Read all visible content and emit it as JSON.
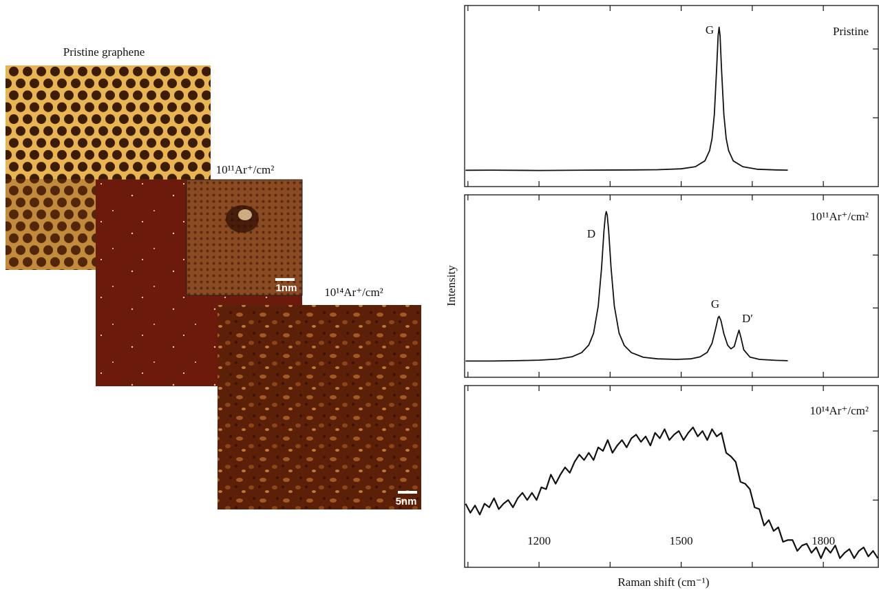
{
  "images": [
    {
      "label": "Pristine graphene"
    },
    {
      "label": "10¹¹Ar⁺/cm²",
      "scale_bar": "1nm"
    },
    {
      "label": "10¹⁴Ar⁺/cm²",
      "scale_bar": "5nm"
    }
  ],
  "chart_data": [
    {
      "type": "line",
      "label": "Pristine",
      "annotations": [
        "G"
      ],
      "color": "#111111",
      "xlim": [
        1043,
        1916
      ],
      "ylim": [
        0,
        100
      ],
      "yticks": [
        38,
        76
      ],
      "x": [
        1045,
        1100,
        1200,
        1300,
        1400,
        1450,
        1500,
        1530,
        1550,
        1560,
        1565,
        1570,
        1575,
        1578,
        1580,
        1582,
        1585,
        1590,
        1595,
        1600,
        1610,
        1630,
        1660,
        1700,
        1725
      ],
      "values": [
        9.0,
        9.1,
        8.9,
        9.1,
        9.2,
        9.3,
        9.8,
        11.0,
        14.2,
        19.9,
        26.5,
        39.9,
        65.8,
        83.4,
        88.0,
        83.4,
        65.8,
        39.9,
        26.5,
        19.9,
        14.2,
        11.0,
        9.6,
        9.2,
        9.1
      ]
    },
    {
      "type": "line",
      "label": "10¹¹Ar⁺/cm²",
      "ylabel": "Intensity",
      "annotations": [
        "D",
        "G",
        "D′"
      ],
      "color": "#111111",
      "xlim": [
        1043,
        1916
      ],
      "ylim": [
        0,
        100
      ],
      "yticks": [
        38,
        67
      ],
      "x": [
        1045,
        1100,
        1150,
        1200,
        1240,
        1270,
        1290,
        1305,
        1315,
        1325,
        1332,
        1337,
        1340,
        1342,
        1344,
        1347,
        1352,
        1359,
        1369,
        1380,
        1395,
        1420,
        1450,
        1490,
        1520,
        1540,
        1555,
        1565,
        1572,
        1578,
        1580,
        1584,
        1590,
        1598,
        1605,
        1612,
        1618,
        1622,
        1626,
        1632,
        1645,
        1665,
        1700,
        1725
      ],
      "values": [
        8.9,
        8.9,
        9.1,
        9.4,
        10.0,
        11.3,
        13.5,
        17.7,
        24.1,
        39.0,
        60.2,
        80.1,
        88.8,
        90.8,
        88.8,
        80.1,
        60.2,
        39.0,
        24.2,
        17.4,
        13.5,
        11.0,
        10.1,
        9.8,
        10.1,
        11.2,
        13.7,
        18.6,
        25.9,
        32.7,
        33.4,
        31.1,
        23.9,
        17.6,
        15.6,
        16.9,
        22.4,
        25.8,
        21.8,
        15.1,
        11.1,
        9.8,
        9.3,
        9.1
      ]
    },
    {
      "type": "line",
      "label": "10¹⁴Ar⁺/cm²",
      "xlabel": "Raman shift (cm⁻¹)",
      "color": "#111111",
      "xlim": [
        1043,
        1916
      ],
      "ylim": [
        0,
        100
      ],
      "yticks": [
        37,
        75
      ],
      "xticks": [
        1200,
        1500,
        1800
      ],
      "xminorticks": [
        1050,
        1350,
        1650
      ],
      "x": [
        1045,
        1055,
        1065,
        1075,
        1085,
        1095,
        1105,
        1115,
        1125,
        1135,
        1145,
        1155,
        1165,
        1175,
        1185,
        1195,
        1205,
        1215,
        1225,
        1235,
        1245,
        1255,
        1265,
        1275,
        1285,
        1295,
        1305,
        1315,
        1325,
        1335,
        1345,
        1355,
        1365,
        1375,
        1385,
        1395,
        1405,
        1415,
        1425,
        1435,
        1445,
        1455,
        1465,
        1475,
        1485,
        1495,
        1505,
        1515,
        1525,
        1535,
        1545,
        1555,
        1565,
        1575,
        1585,
        1595,
        1605,
        1615,
        1625,
        1635,
        1645,
        1655,
        1665,
        1675,
        1685,
        1695,
        1705,
        1715,
        1725,
        1735,
        1745,
        1755,
        1765,
        1775,
        1785,
        1795,
        1805,
        1815,
        1825,
        1835,
        1845,
        1855,
        1865,
        1875,
        1885,
        1895,
        1905,
        1915
      ],
      "values": [
        35,
        30,
        34,
        29,
        35,
        33,
        38,
        32,
        35,
        37,
        33,
        38,
        41,
        37,
        41,
        37,
        44,
        43,
        51,
        46,
        51,
        55,
        52,
        58,
        62,
        59,
        63,
        59,
        66,
        64,
        70,
        63,
        67,
        70,
        66,
        71,
        73,
        69,
        72,
        67,
        74,
        71,
        76,
        70,
        73,
        75,
        70,
        74,
        77,
        72,
        75,
        70,
        76,
        72,
        74,
        63,
        61,
        58,
        47,
        46,
        43,
        33,
        32,
        23,
        26,
        20,
        22,
        14,
        15,
        15,
        9,
        12,
        13,
        8,
        11,
        5,
        11,
        8,
        12,
        5,
        8,
        10,
        5,
        9,
        11,
        6,
        9,
        5
      ]
    }
  ]
}
